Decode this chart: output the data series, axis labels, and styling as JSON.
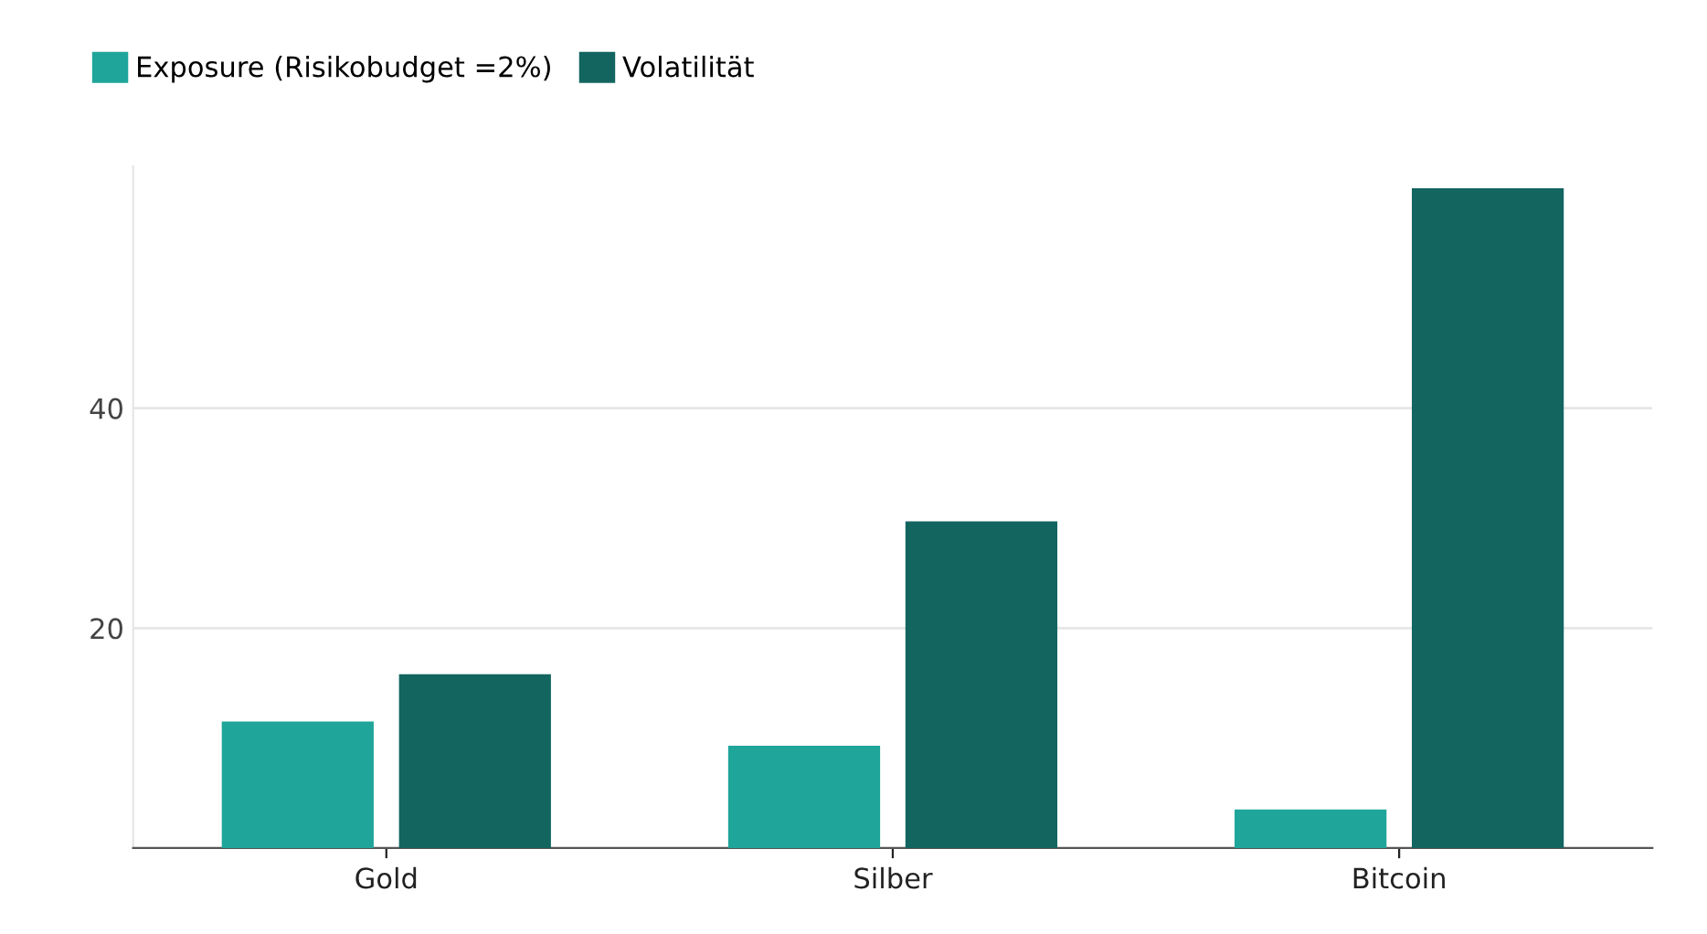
{
  "chart_data": {
    "type": "bar",
    "categories": [
      "Gold",
      "Silber",
      "Bitcoin"
    ],
    "series": [
      {
        "name": "Exposure (Risikobudget =2%)",
        "color": "#1fa59a",
        "values": [
          11.5,
          9.3,
          3.5
        ]
      },
      {
        "name": "Volatilität",
        "color": "#136560",
        "values": [
          15.8,
          29.7,
          60
        ]
      }
    ],
    "ylim": [
      0,
      62
    ],
    "yticks": [
      20,
      40
    ],
    "grid": "y",
    "legend": "top left"
  }
}
